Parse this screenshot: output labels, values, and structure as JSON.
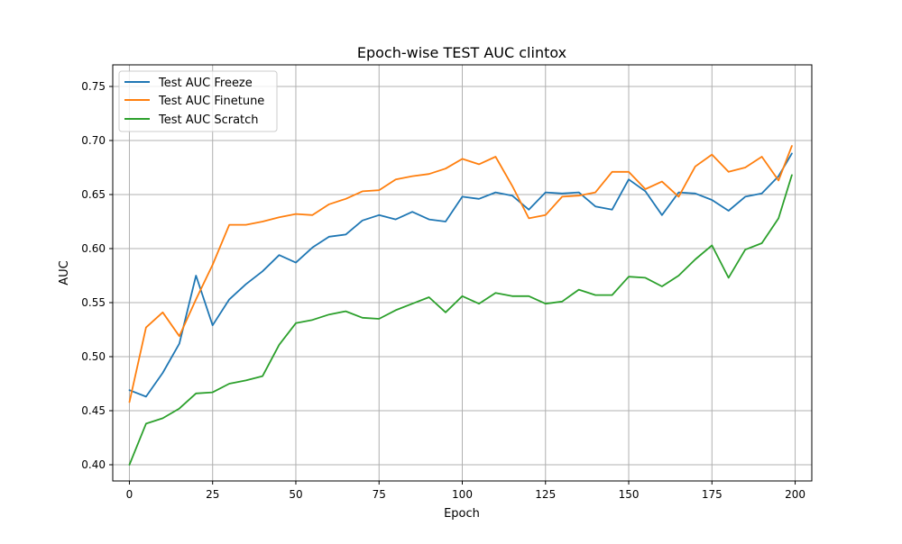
{
  "chart_data": {
    "type": "line",
    "title": "Epoch-wise TEST AUC clintox",
    "xlabel": "Epoch",
    "ylabel": "AUC",
    "xlim": [
      -5,
      205
    ],
    "ylim": [
      0.385,
      0.77
    ],
    "xticks": [
      0,
      25,
      50,
      75,
      100,
      125,
      150,
      175,
      200
    ],
    "xtick_labels": [
      "0",
      "25",
      "50",
      "75",
      "100",
      "125",
      "150",
      "175",
      "200"
    ],
    "yticks": [
      0.4,
      0.45,
      0.5,
      0.55,
      0.6,
      0.65,
      0.7,
      0.75
    ],
    "ytick_labels": [
      "0.40",
      "0.45",
      "0.50",
      "0.55",
      "0.60",
      "0.65",
      "0.70",
      "0.75"
    ],
    "grid": true,
    "legend_position": "top-left",
    "x": [
      0,
      5,
      10,
      15,
      20,
      25,
      30,
      35,
      40,
      45,
      50,
      55,
      60,
      65,
      70,
      75,
      80,
      85,
      90,
      95,
      100,
      105,
      110,
      115,
      120,
      125,
      130,
      135,
      140,
      145,
      150,
      155,
      160,
      165,
      170,
      175,
      180,
      185,
      190,
      195,
      199
    ],
    "series": [
      {
        "name": "Test AUC Freeze",
        "color": "#1f77b4",
        "values": [
          0.469,
          0.463,
          0.485,
          0.512,
          0.575,
          0.529,
          0.553,
          0.567,
          0.579,
          0.594,
          0.587,
          0.601,
          0.611,
          0.613,
          0.626,
          0.631,
          0.627,
          0.634,
          0.627,
          0.625,
          0.648,
          0.646,
          0.652,
          0.649,
          0.636,
          0.652,
          0.651,
          0.652,
          0.639,
          0.636,
          0.664,
          0.653,
          0.631,
          0.652,
          0.651,
          0.645,
          0.635,
          0.648,
          0.651,
          0.667,
          0.688
        ]
      },
      {
        "name": "Test AUC Finetune",
        "color": "#ff7f0e",
        "values": [
          0.458,
          0.527,
          0.541,
          0.519,
          0.553,
          0.585,
          0.622,
          0.622,
          0.625,
          0.629,
          0.632,
          0.631,
          0.641,
          0.646,
          0.653,
          0.654,
          0.664,
          0.667,
          0.669,
          0.674,
          0.683,
          0.678,
          0.685,
          0.658,
          0.628,
          0.631,
          0.648,
          0.649,
          0.652,
          0.671,
          0.671,
          0.655,
          0.662,
          0.648,
          0.676,
          0.687,
          0.671,
          0.675,
          0.685,
          0.663,
          0.695
        ]
      },
      {
        "name": "Test AUC Scratch",
        "color": "#2ca02c",
        "values": [
          0.4,
          0.438,
          0.443,
          0.452,
          0.466,
          0.467,
          0.475,
          0.478,
          0.482,
          0.511,
          0.531,
          0.534,
          0.539,
          0.542,
          0.536,
          0.535,
          0.543,
          0.549,
          0.555,
          0.541,
          0.556,
          0.549,
          0.559,
          0.556,
          0.556,
          0.549,
          0.551,
          0.562,
          0.557,
          0.557,
          0.574,
          0.573,
          0.565,
          0.575,
          0.59,
          0.603,
          0.573,
          0.599,
          0.605,
          0.628,
          0.668
        ]
      }
    ]
  }
}
